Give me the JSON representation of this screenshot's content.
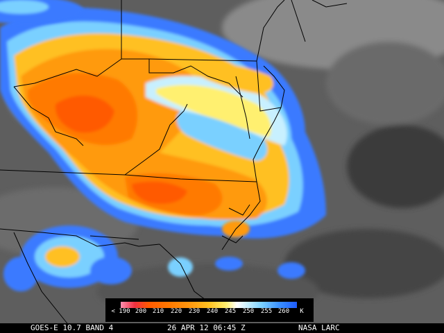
{
  "legend": {
    "ticks": [
      "< 190",
      "200",
      "210",
      "220",
      "230",
      "240",
      "245",
      "250",
      "255",
      "260",
      "K"
    ],
    "colors": [
      "#ff8fb0",
      "#f03040",
      "#ff5a00",
      "#ff7a00",
      "#ff9a10",
      "#ffc020",
      "#fff070",
      "#ffffff",
      "#c8f0ff",
      "#7ad0ff",
      "#3a90ff",
      "#1e5cff"
    ]
  },
  "caption": {
    "satellite": "GOES-E 10.7 BAND 4",
    "datetime": "26 APR 12 06:45 Z",
    "source": "NASA LARC"
  },
  "map": {
    "background": "#5a5a5a",
    "border_color": "#000000"
  }
}
